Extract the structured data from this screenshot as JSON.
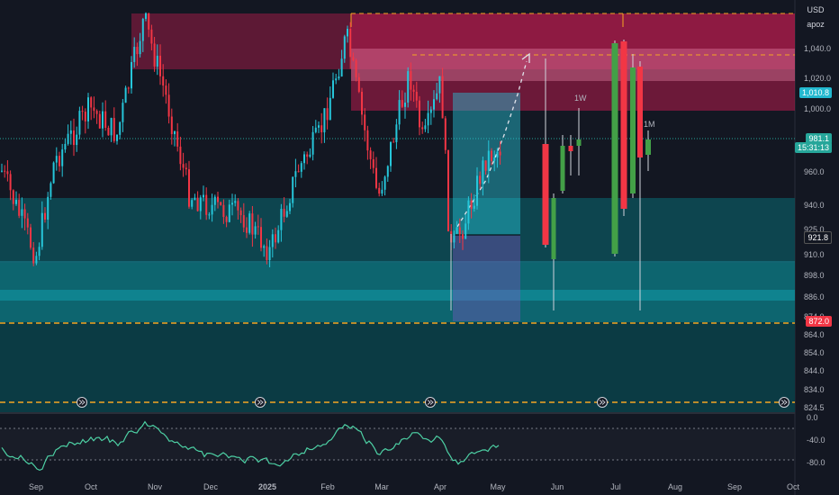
{
  "axis": {
    "currency_label": "USD",
    "scale_label": "apoz",
    "price_ticks": [
      "1,040.0",
      "1,020.0",
      "1,000.0",
      "960.0",
      "940.0",
      "925.0",
      "910.0",
      "898.0",
      "886.0",
      "874.0",
      "864.0",
      "854.0",
      "844.0",
      "834.0",
      "824.5"
    ],
    "osc_ticks": [
      "0.0",
      "-40.0",
      "-80.0"
    ],
    "time_labels": [
      "Sep",
      "Oct",
      "Nov",
      "Dec",
      "2025",
      "Feb",
      "Mar",
      "Apr",
      "May",
      "Jun",
      "Jul",
      "Aug",
      "Sep",
      "Oct"
    ]
  },
  "price_tags": {
    "top_level": {
      "text": "1,010.8",
      "color": "#22b8cf"
    },
    "current": {
      "text": "981.1",
      "countdown": "15:31:13",
      "color": "#26a69a"
    },
    "support": {
      "text": "921.8",
      "color": "#131722"
    },
    "stop": {
      "text": "872.0",
      "color": "#f23645"
    }
  },
  "annotations": {
    "weekly": "1W",
    "monthly": "1M"
  },
  "colors": {
    "bull": "#26c6da",
    "bear": "#f23645",
    "zone_red": "#b71c4d",
    "zone_teal": "#0e7c86",
    "rsi_line": "#4dd0a4",
    "dash_orange": "#f5a623"
  },
  "icons": [
    "arrows-right-icon"
  ]
}
